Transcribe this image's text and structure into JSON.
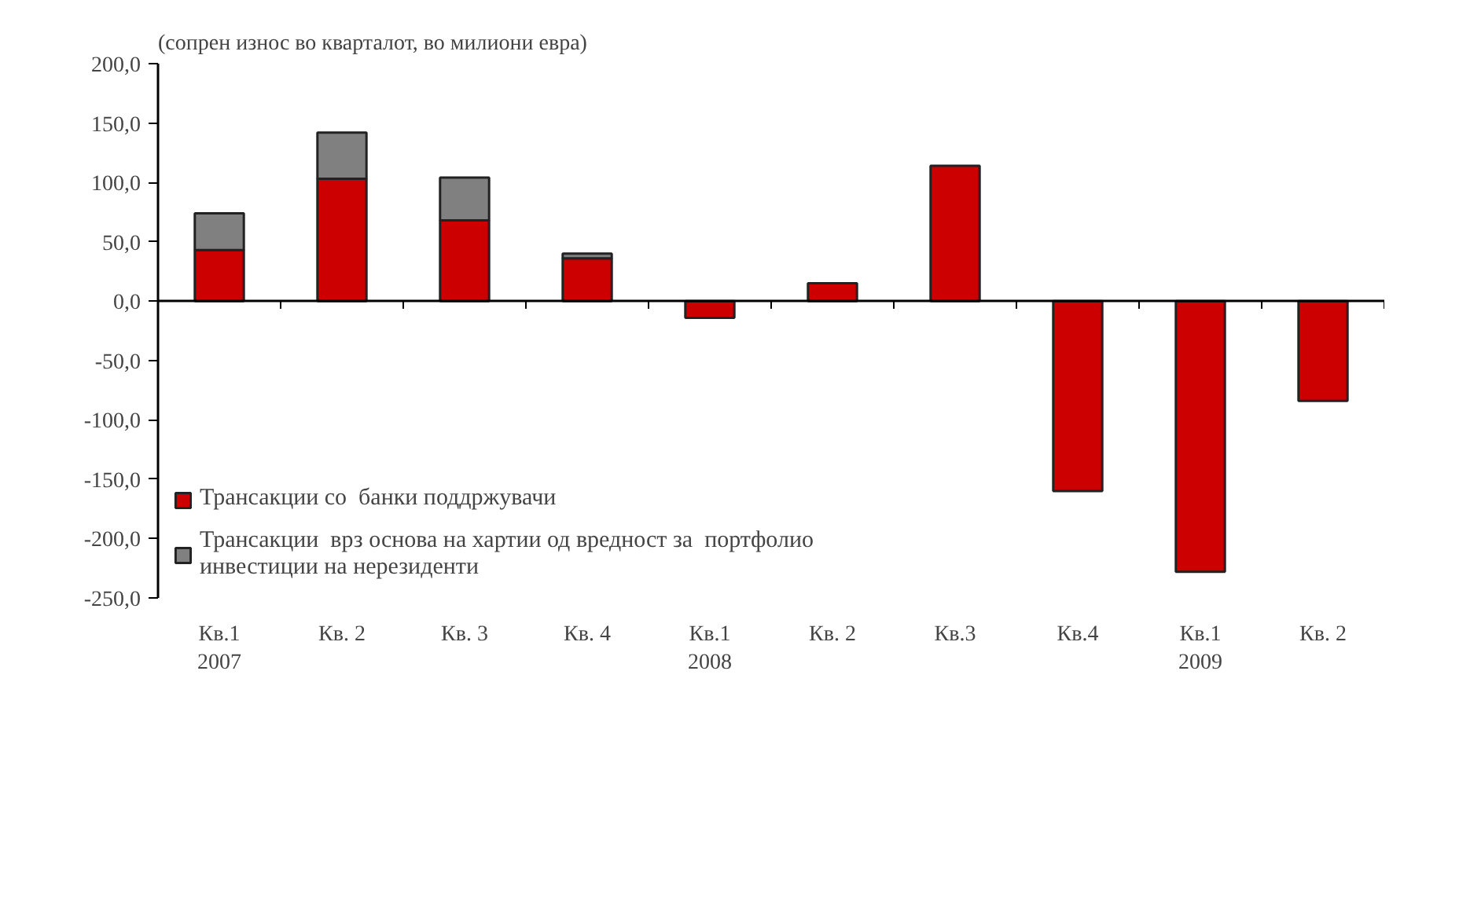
{
  "chart_data": {
    "type": "bar",
    "stacked": true,
    "subtitle": "(сопрен износ во кварталот, во милиони евра)",
    "categories": [
      "Кв.1\n2007",
      "Кв. 2",
      "Кв. 3",
      "Кв. 4",
      "Кв.1\n2008",
      "Кв. 2",
      "Кв.3",
      "Кв.4",
      "Кв.1\n2009",
      "Кв. 2"
    ],
    "series": [
      {
        "name": "Трансакции со  банки поддржувачи",
        "color": "#cc0000",
        "values": [
          43,
          103,
          68,
          36,
          -14,
          15,
          114,
          -160,
          -228,
          -84
        ]
      },
      {
        "name": "Трансакции  врз основа на хартии од вредност за  портфолио инвестиции на нерезиденти",
        "color": "#808080",
        "values": [
          31,
          39,
          36,
          4,
          null,
          null,
          null,
          null,
          null,
          null
        ]
      }
    ],
    "ylim": [
      -250,
      200
    ],
    "yticks": [
      {
        "value": -250,
        "label": "-250,0"
      },
      {
        "value": -200,
        "label": "-200,0"
      },
      {
        "value": -150,
        "label": "-150,0"
      },
      {
        "value": -100,
        "label": "-100,0"
      },
      {
        "value": -50,
        "label": "-50,0"
      },
      {
        "value": 0,
        "label": "0,0"
      },
      {
        "value": 50,
        "label": "50,0"
      },
      {
        "value": 100,
        "label": "100,0"
      },
      {
        "value": 150,
        "label": "150,0"
      },
      {
        "value": 200,
        "label": "200,0"
      }
    ],
    "legend": "bottom left"
  }
}
